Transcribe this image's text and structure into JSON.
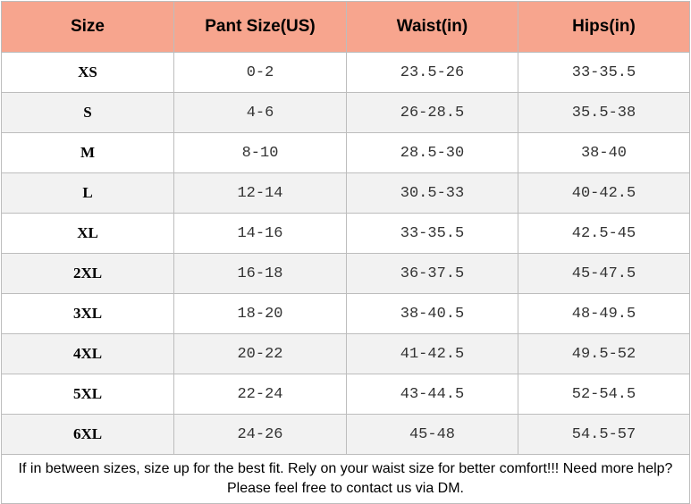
{
  "header_color": "#f7a58e",
  "alt_row_color": "#f2f2f2",
  "columns": [
    "Size",
    "Pant Size(US)",
    "Waist(in)",
    "Hips(in)"
  ],
  "rows": [
    [
      "XS",
      "0-2",
      "23.5-26",
      "33-35.5"
    ],
    [
      "S",
      "4-6",
      "26-28.5",
      "35.5-38"
    ],
    [
      "M",
      "8-10",
      "28.5-30",
      "38-40"
    ],
    [
      "L",
      "12-14",
      "30.5-33",
      "40-42.5"
    ],
    [
      "XL",
      "14-16",
      "33-35.5",
      "42.5-45"
    ],
    [
      "2XL",
      "16-18",
      "36-37.5",
      "45-47.5"
    ],
    [
      "3XL",
      "18-20",
      "38-40.5",
      "48-49.5"
    ],
    [
      "4XL",
      "20-22",
      "41-42.5",
      "49.5-52"
    ],
    [
      "5XL",
      "22-24",
      "43-44.5",
      "52-54.5"
    ],
    [
      "6XL",
      "24-26",
      "45-48",
      "54.5-57"
    ]
  ],
  "footnote": "If in between sizes, size up for the best fit. Rely on your waist size for better comfort!!! Need more help? Please feel free to contact us via DM."
}
